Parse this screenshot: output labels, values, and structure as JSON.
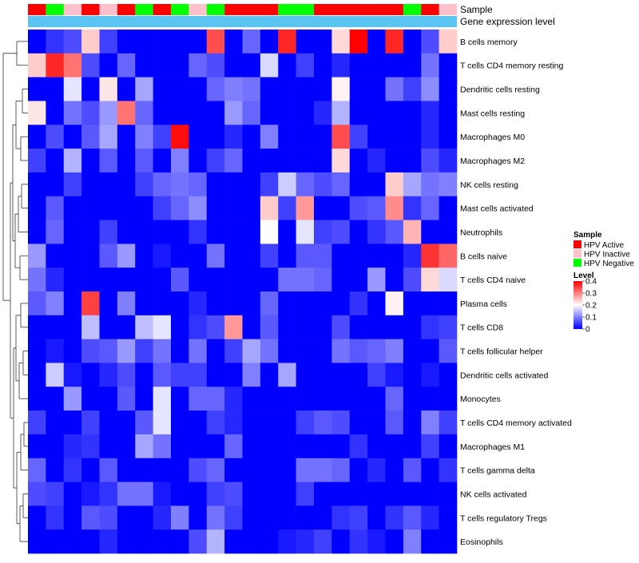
{
  "chart_data": {
    "type": "heatmap",
    "annotation_labels": [
      "Sample",
      "Gene expression level"
    ],
    "sample_groups": [
      "HPV Active",
      "HPV Negative",
      "HPV Inactive",
      "HPV Active",
      "HPV Inactive",
      "HPV Active",
      "HPV Negative",
      "HPV Active",
      "HPV Negative",
      "HPV Inactive",
      "HPV Negative",
      "HPV Active",
      "HPV Active",
      "HPV Active",
      "HPV Negative",
      "HPV Negative",
      "HPV Active",
      "HPV Active",
      "HPV Active",
      "HPV Active",
      "HPV Active",
      "HPV Negative",
      "HPV Active",
      "HPV Inactive"
    ],
    "rows": [
      "B cells memory",
      "T cells CD4 memory resting",
      "Dendritic cells resting",
      "Mast cells resting",
      "Macrophages M0",
      "Macrophages M2",
      "NK cells resting",
      "Mast cells activated",
      "Neutrophils",
      "B cells naive",
      "T cells CD4 naive",
      "Plasma cells",
      "T cells CD8",
      "T cells follicular helper",
      "Dendritic cells activated",
      "Monocytes",
      "T cells CD4 memory activated",
      "Macrophages M1",
      "T cells gamma delta",
      "NK cells activated",
      "T cells regulatory  Tregs",
      "Eosinophils"
    ],
    "values": [
      [
        0.0,
        0.04,
        0.06,
        0.24,
        0.05,
        0.0,
        0.0,
        0.0,
        0.0,
        0.0,
        0.34,
        0.0,
        0.08,
        0.0,
        0.37,
        0.0,
        0.0,
        0.23,
        0.4,
        0.0,
        0.37,
        0.0,
        0.06,
        0.24
      ],
      [
        0.24,
        0.37,
        0.31,
        0.06,
        0.0,
        0.08,
        0.0,
        0.0,
        0.0,
        0.08,
        0.06,
        0.0,
        0.0,
        0.17,
        0.0,
        0.05,
        0.0,
        0.03,
        0.0,
        0.0,
        0.0,
        0.0,
        0.09,
        0.0
      ],
      [
        0.0,
        0.0,
        0.18,
        0.0,
        0.22,
        0.0,
        0.13,
        0.0,
        0.0,
        0.0,
        0.08,
        0.1,
        0.09,
        0.0,
        0.0,
        0.0,
        0.0,
        0.21,
        0.0,
        0.0,
        0.09,
        0.05,
        0.11,
        0.0
      ],
      [
        0.22,
        0.0,
        0.09,
        0.06,
        0.12,
        0.31,
        0.08,
        0.0,
        0.0,
        0.0,
        0.0,
        0.12,
        0.08,
        0.0,
        0.0,
        0.0,
        0.03,
        0.14,
        0.0,
        0.0,
        0.0,
        0.0,
        0.03,
        0.0
      ],
      [
        0.0,
        0.06,
        0.0,
        0.07,
        0.13,
        0.0,
        0.1,
        0.05,
        0.39,
        0.0,
        0.0,
        0.03,
        0.0,
        0.1,
        0.0,
        0.0,
        0.0,
        0.34,
        0.05,
        0.0,
        0.0,
        0.0,
        0.03,
        0.0
      ],
      [
        0.05,
        0.0,
        0.14,
        0.0,
        0.07,
        0.0,
        0.07,
        0.0,
        0.1,
        0.0,
        0.05,
        0.08,
        0.0,
        0.0,
        0.0,
        0.0,
        0.0,
        0.23,
        0.0,
        0.03,
        0.0,
        0.0,
        0.06,
        0.03
      ],
      [
        0.0,
        0.0,
        0.05,
        0.0,
        0.0,
        0.0,
        0.05,
        0.08,
        0.09,
        0.08,
        0.0,
        0.0,
        0.0,
        0.05,
        0.16,
        0.08,
        0.06,
        0.08,
        0.0,
        0.0,
        0.24,
        0.13,
        0.09,
        0.1
      ],
      [
        0.0,
        0.07,
        0.0,
        0.0,
        0.0,
        0.0,
        0.0,
        0.05,
        0.08,
        0.11,
        0.0,
        0.0,
        0.0,
        0.24,
        0.05,
        0.28,
        0.0,
        0.0,
        0.06,
        0.07,
        0.29,
        0.04,
        0.08,
        0.0
      ],
      [
        0.0,
        0.08,
        0.0,
        0.0,
        0.05,
        0.0,
        0.0,
        0.0,
        0.0,
        0.04,
        0.0,
        0.0,
        0.0,
        0.2,
        0.0,
        0.18,
        0.05,
        0.06,
        0.0,
        0.04,
        0.07,
        0.26,
        0.0,
        0.0
      ],
      [
        0.12,
        0.0,
        0.0,
        0.0,
        0.07,
        0.12,
        0.0,
        0.02,
        0.0,
        0.0,
        0.09,
        0.0,
        0.0,
        0.05,
        0.0,
        0.07,
        0.07,
        0.0,
        0.0,
        0.0,
        0.0,
        0.03,
        0.36,
        0.32
      ],
      [
        0.09,
        0.03,
        0.0,
        0.0,
        0.0,
        0.0,
        0.0,
        0.0,
        0.07,
        0.0,
        0.0,
        0.0,
        0.0,
        0.0,
        0.09,
        0.09,
        0.08,
        0.0,
        0.0,
        0.12,
        0.0,
        0.06,
        0.23,
        0.17
      ],
      [
        0.07,
        0.1,
        0.0,
        0.35,
        0.0,
        0.1,
        0.0,
        0.0,
        0.0,
        0.03,
        0.0,
        0.0,
        0.0,
        0.08,
        0.0,
        0.0,
        0.0,
        0.0,
        0.04,
        0.0,
        0.21,
        0.0,
        0.0,
        0.0
      ],
      [
        0.0,
        0.0,
        0.0,
        0.15,
        0.0,
        0.0,
        0.15,
        0.18,
        0.0,
        0.04,
        0.06,
        0.28,
        0.0,
        0.07,
        0.0,
        0.0,
        0.0,
        0.06,
        0.0,
        0.0,
        0.0,
        0.0,
        0.04,
        0.05
      ],
      [
        0.0,
        0.02,
        0.0,
        0.06,
        0.07,
        0.12,
        0.05,
        0.09,
        0.0,
        0.09,
        0.0,
        0.05,
        0.13,
        0.09,
        0.0,
        0.0,
        0.0,
        0.09,
        0.07,
        0.08,
        0.1,
        0.0,
        0.0,
        0.07
      ],
      [
        0.0,
        0.16,
        0.02,
        0.0,
        0.03,
        0.06,
        0.0,
        0.07,
        0.05,
        0.05,
        0.0,
        0.0,
        0.1,
        0.0,
        0.13,
        0.0,
        0.0,
        0.0,
        0.0,
        0.05,
        0.02,
        0.0,
        0.02,
        0.0
      ],
      [
        0.0,
        0.0,
        0.12,
        0.0,
        0.0,
        0.07,
        0.0,
        0.18,
        0.0,
        0.08,
        0.08,
        0.03,
        0.0,
        0.0,
        0.0,
        0.0,
        0.0,
        0.0,
        0.0,
        0.0,
        0.08,
        0.0,
        0.0,
        0.0
      ],
      [
        0.05,
        0.0,
        0.0,
        0.05,
        0.0,
        0.0,
        0.07,
        0.18,
        0.0,
        0.0,
        0.05,
        0.03,
        0.0,
        0.0,
        0.0,
        0.05,
        0.07,
        0.06,
        0.0,
        0.0,
        0.07,
        0.0,
        0.1,
        0.05
      ],
      [
        0.0,
        0.0,
        0.03,
        0.04,
        0.0,
        0.0,
        0.13,
        0.09,
        0.0,
        0.0,
        0.0,
        0.08,
        0.0,
        0.0,
        0.0,
        0.0,
        0.0,
        0.0,
        0.04,
        0.0,
        0.0,
        0.0,
        0.05,
        0.0
      ],
      [
        0.08,
        0.0,
        0.04,
        0.0,
        0.07,
        0.0,
        0.0,
        0.0,
        0.0,
        0.06,
        0.08,
        0.0,
        0.0,
        0.0,
        0.0,
        0.09,
        0.09,
        0.08,
        0.0,
        0.03,
        0.0,
        0.07,
        0.0,
        0.04
      ],
      [
        0.06,
        0.05,
        0.0,
        0.02,
        0.04,
        0.09,
        0.09,
        0.02,
        0.0,
        0.0,
        0.05,
        0.06,
        0.0,
        0.0,
        0.0,
        0.05,
        0.0,
        0.0,
        0.0,
        0.0,
        0.0,
        0.0,
        0.0,
        0.0
      ],
      [
        0.0,
        0.04,
        0.0,
        0.07,
        0.06,
        0.0,
        0.0,
        0.03,
        0.1,
        0.0,
        0.09,
        0.05,
        0.0,
        0.0,
        0.0,
        0.0,
        0.0,
        0.04,
        0.05,
        0.0,
        0.04,
        0.07,
        0.03,
        0.0
      ],
      [
        0.0,
        0.0,
        0.0,
        0.0,
        0.03,
        0.0,
        0.0,
        0.0,
        0.0,
        0.06,
        0.14,
        0.0,
        0.0,
        0.0,
        0.02,
        0.03,
        0.05,
        0.0,
        0.04,
        0.02,
        0.0,
        0.1,
        0.0,
        0.0
      ]
    ],
    "legend": {
      "sample_title": "Sample",
      "sample_entries": [
        {
          "label": "HPV Active",
          "color": "#ff0000"
        },
        {
          "label": "HPV Inactive",
          "color": "#ffc0cb"
        },
        {
          "label": "HPV Negative",
          "color": "#00ff00"
        }
      ],
      "level_title": "Level",
      "level_ticks": [
        "0.4",
        "0.3",
        "0.2",
        "0.1",
        "0"
      ],
      "level_tick_values": [
        0.4,
        0.3,
        0.2,
        0.1,
        0
      ],
      "legend_placement": "right"
    },
    "color_scale": {
      "low": "#0000ff",
      "mid": "#ffffff",
      "high": "#ff0000",
      "min": 0,
      "mid_value": 0.2,
      "max": 0.4
    },
    "expression_bar_color": "#5bc4f0"
  }
}
